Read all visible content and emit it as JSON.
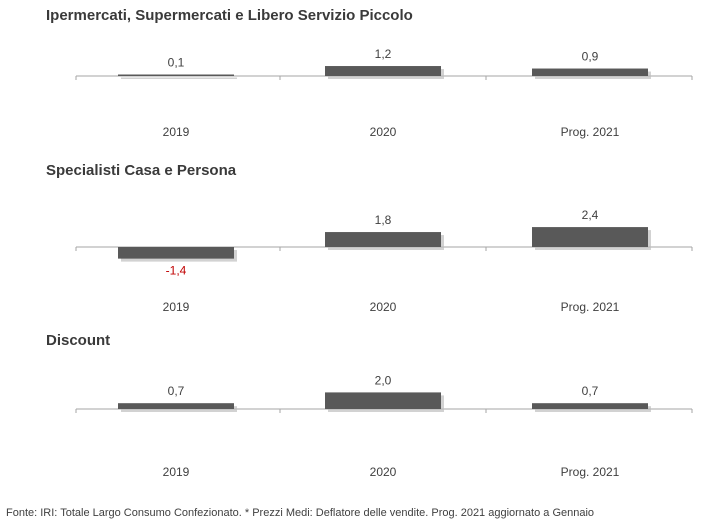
{
  "colors": {
    "bar": "#595959",
    "shadow": "#bfbfbf",
    "axis": "#a6a6a6",
    "negative_label": "#c00000",
    "text": "#404040"
  },
  "chart_data": [
    {
      "type": "bar",
      "title": "Ipermercati,  Supermercati e Libero Servizio Piccolo",
      "categories": [
        "2019",
        "2020",
        "Prog. 2021"
      ],
      "values": [
        0.1,
        1.2,
        0.9
      ],
      "labels": [
        "0,1",
        "1,2",
        "0,9"
      ]
    },
    {
      "type": "bar",
      "title": "Specialisti  Casa e Persona",
      "categories": [
        "2019",
        "2020",
        "Prog. 2021"
      ],
      "values": [
        -1.4,
        1.8,
        2.4
      ],
      "labels": [
        "-1,4",
        "1,8",
        "2,4"
      ]
    },
    {
      "type": "bar",
      "title": "Discount",
      "categories": [
        "2019",
        "2020",
        "Prog. 2021"
      ],
      "values": [
        0.7,
        2.0,
        0.7
      ],
      "labels": [
        "0,7",
        "2,0",
        "0,7"
      ]
    }
  ],
  "footer": "Fonte: IRI: Totale Largo Consumo Confezionato.  * Prezzi  Medi:  Deflatore delle vendite.   Prog. 2021 aggiornato a Gennaio"
}
